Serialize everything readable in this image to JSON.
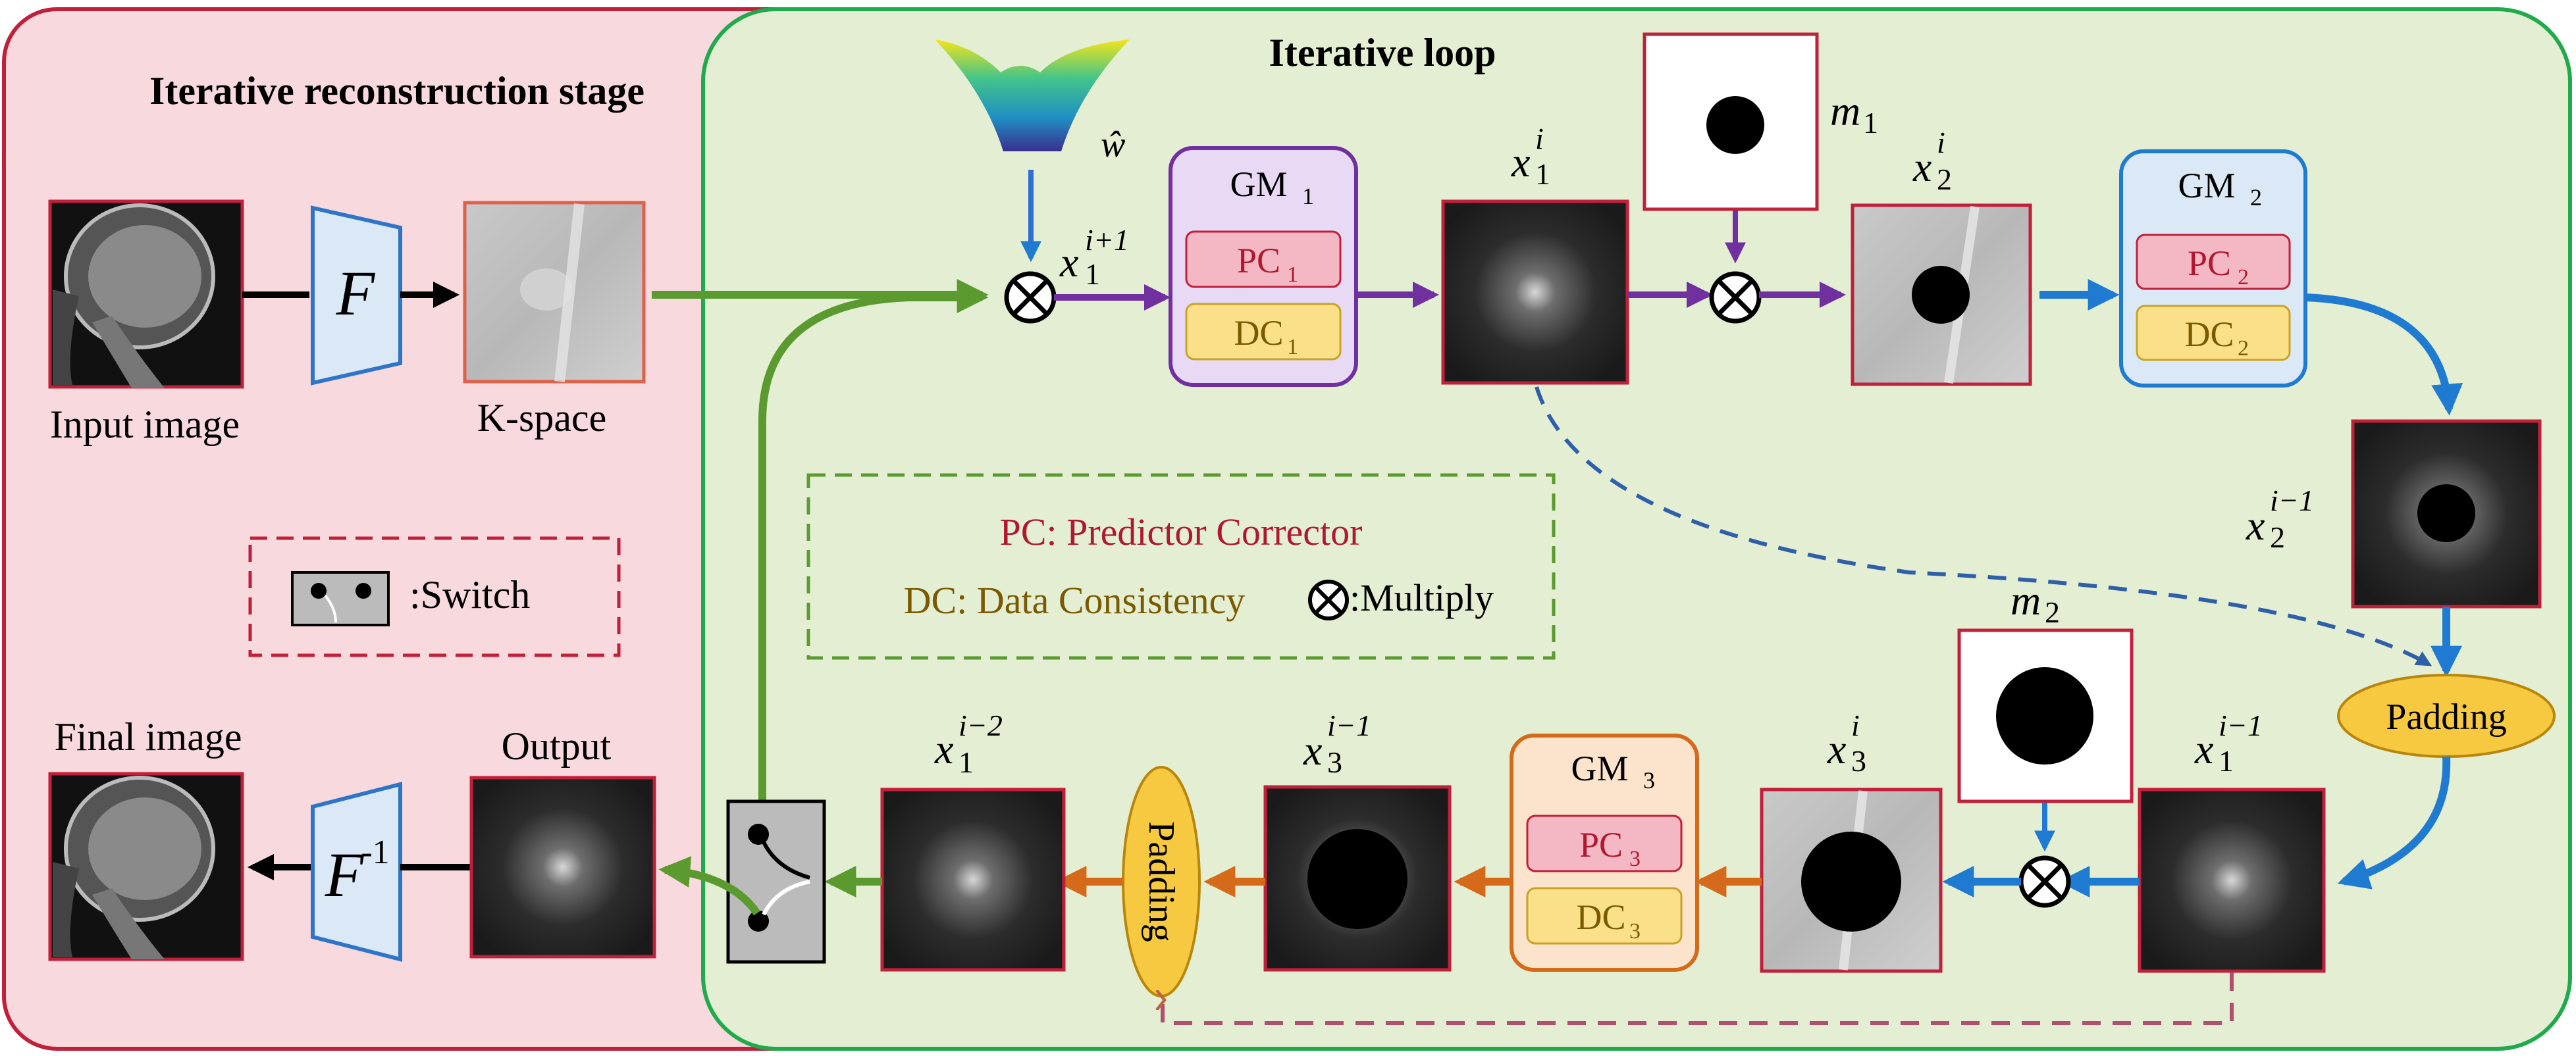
{
  "regions": {
    "outer_title": "Iterative reconstruction stage",
    "loop_title": "Iterative loop"
  },
  "left": {
    "input_label": "Input image",
    "kspace_label": "K-space",
    "final_label": "Final image",
    "output_label": "Output",
    "fourier_symbol": "F",
    "inverse_fourier_symbol": "F",
    "inverse_superscript": "-1",
    "switch_legend": ":Switch"
  },
  "legend": {
    "pc_line": "PC: Predictor Corrector",
    "dc_line": "DC: Data Consistency",
    "multiply_line": ":Multiply"
  },
  "modules": {
    "gm1": {
      "gm": "GM",
      "sub": "1",
      "pc": "PC",
      "dc": "DC"
    },
    "gm2": {
      "gm": "GM",
      "sub": "2",
      "pc": "PC",
      "dc": "DC"
    },
    "gm3": {
      "gm": "GM",
      "sub": "3",
      "pc": "PC",
      "dc": "DC"
    },
    "padding_right": "Padding",
    "padding_left": "Padding"
  },
  "symbols": {
    "w_hat": "ŵ",
    "x": "x",
    "m": "m",
    "sup_i_plus_1": "i+1",
    "sup_i": "i",
    "sup_i_minus_1": "i−1",
    "sup_i_minus_2": "i−2",
    "sub_1": "1",
    "sub_2": "2",
    "sub_3": "3"
  },
  "colors": {
    "outer_bg": "#f8d9de",
    "outer_border": "#c0203a",
    "loop_bg": "#e3eed3",
    "loop_border": "#1faa4b",
    "purple": "#7030a0",
    "blue": "#1f7bd1",
    "orange": "#d46a1a",
    "green": "#5a9a2f",
    "pc_text": "#b01830",
    "dc_text": "#7a5a00"
  }
}
